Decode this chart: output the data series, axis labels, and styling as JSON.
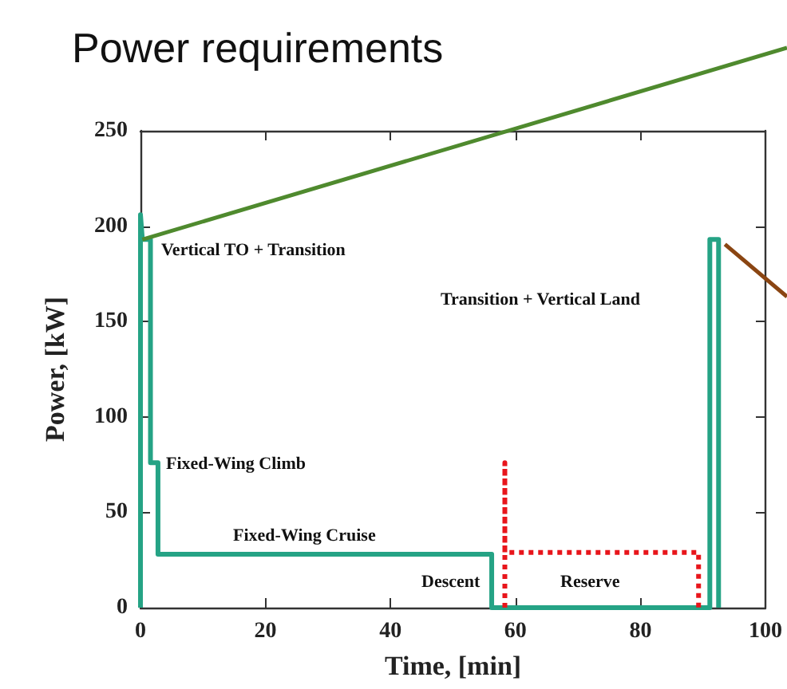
{
  "chart_data": {
    "type": "line",
    "title": "Power requirements",
    "xlabel": "Time, [min]",
    "ylabel": "Power, [kW]",
    "xlim": [
      0,
      100
    ],
    "xticks": [
      0,
      20,
      40,
      60,
      80,
      100
    ],
    "ylim": [
      0,
      250
    ],
    "yticks": [
      0,
      50,
      100,
      150,
      200,
      250
    ],
    "grid": false,
    "marker": "none",
    "series": [
      {
        "color": "#25a385",
        "line_style": "solid",
        "x": [
          0,
          0,
          0.3,
          1.6,
          1.6,
          2.8,
          2.8,
          56.2,
          56.2,
          57.8,
          91.1,
          91.1,
          92.5,
          92.5
        ],
        "values": [
          0,
          206,
          193,
          193,
          76,
          76,
          28,
          28,
          0,
          0,
          0,
          193,
          193,
          0
        ]
      },
      {
        "color": "#e8151b",
        "line_style": "dotted",
        "x": [
          58.3,
          58.3,
          58.3,
          89.3,
          89.3
        ],
        "values": [
          0,
          76,
          29,
          29,
          0
        ]
      }
    ],
    "annotations": [
      "Vertical TO + Transition",
      "Fixed-Wing Climb",
      "Fixed-Wing Cruise",
      "Descent",
      "Reserve",
      "Transition + Vertical Land"
    ]
  }
}
